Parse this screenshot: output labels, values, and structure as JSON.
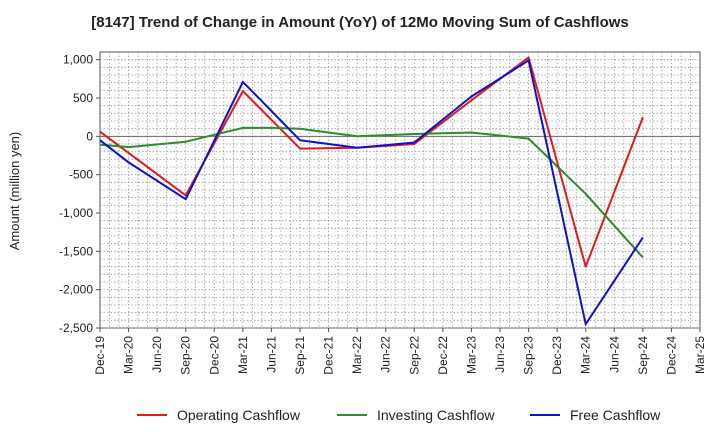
{
  "chart_data": {
    "type": "line",
    "title": "[8147]  Trend of Change in Amount (YoY) of 12Mo Moving Sum of Cashflows",
    "xlabel": "",
    "ylabel": "Amount (million yen)",
    "ylim": [
      -2500,
      1100
    ],
    "yticks": [
      1000,
      500,
      0,
      -500,
      -1000,
      -1500,
      -2000,
      -2500
    ],
    "ytick_labels": [
      "1,000",
      "500",
      "0",
      "-500",
      "-1,000",
      "-1,500",
      "-2,000",
      "-2,500"
    ],
    "categories": [
      "Dec-19",
      "Mar-20",
      "Jun-20",
      "Sep-20",
      "Dec-20",
      "Mar-21",
      "Jun-21",
      "Sep-21",
      "Dec-21",
      "Mar-22",
      "Jun-22",
      "Sep-22",
      "Dec-22",
      "Mar-23",
      "Jun-23",
      "Sep-23",
      "Dec-23",
      "Mar-24",
      "Jun-24",
      "Sep-24",
      "Dec-24",
      "Mar-25"
    ],
    "series": [
      {
        "name": "Operating Cashflow",
        "color": "#e31a1c",
        "values": [
          60,
          null,
          null,
          -770,
          null,
          590,
          null,
          -160,
          null,
          -150,
          null,
          -100,
          null,
          470,
          null,
          1030,
          null,
          -1700,
          null,
          250,
          null,
          null
        ]
      },
      {
        "name": "Investing Cashflow",
        "color": "#2e8b2e",
        "values": [
          -110,
          -140,
          null,
          -70,
          null,
          110,
          110,
          100,
          null,
          0,
          null,
          30,
          null,
          50,
          null,
          -30,
          null,
          -750,
          null,
          -1580,
          null,
          null
        ]
      },
      {
        "name": "Free Cashflow",
        "color": "#1010cc",
        "values": [
          -50,
          -340,
          null,
          -820,
          null,
          710,
          null,
          -50,
          null,
          -150,
          null,
          -80,
          null,
          520,
          null,
          990,
          null,
          -2450,
          null,
          -1320,
          null,
          null
        ]
      }
    ],
    "legend": "bottom",
    "grid": true
  }
}
